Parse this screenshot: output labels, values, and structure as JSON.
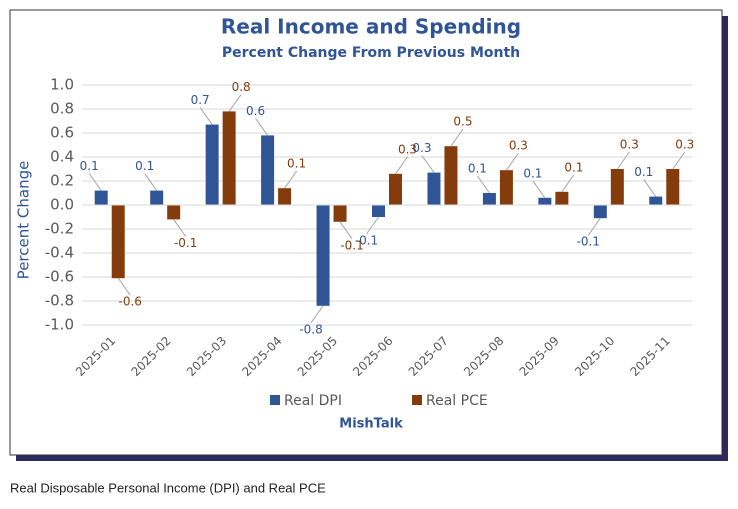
{
  "chart_data": {
    "type": "bar",
    "title": "Real Income and Spending",
    "subtitle": "Percent Change From Previous Month",
    "y_label": "Percent Change",
    "categories": [
      "2025-01",
      "2025-02",
      "2025-03",
      "2025-04",
      "2025-05",
      "2025-06",
      "2025-07",
      "2025-08",
      "2025-09",
      "2025-10",
      "2025-11"
    ],
    "series": [
      {
        "name": "Real DPI",
        "color": "#2f5597",
        "values": [
          0.12,
          0.12,
          0.67,
          0.58,
          -0.84,
          -0.1,
          0.27,
          0.1,
          0.06,
          -0.11,
          0.07
        ],
        "value_labels": [
          "0.1",
          "0.1",
          "0.7",
          "0.6",
          "-0.8",
          "-0.1",
          "0.3",
          "0.1",
          "0.1",
          "-0.1",
          "0.1"
        ]
      },
      {
        "name": "Real PCE",
        "color": "#843c0c",
        "values": [
          -0.61,
          -0.12,
          0.78,
          0.14,
          -0.14,
          0.26,
          0.49,
          0.29,
          0.11,
          0.3,
          0.3
        ],
        "value_labels": [
          "-0.6",
          "-0.1",
          "0.8",
          "0.1",
          "-0.1",
          "0.3",
          "0.5",
          "0.3",
          "0.1",
          "0.3",
          "0.3"
        ]
      }
    ],
    "ylim": [
      -1,
      1
    ],
    "yticks": [
      {
        "value": -1,
        "label": "-1.0"
      },
      -0.8,
      -0.6,
      -0.4,
      -0.2,
      {
        "value": 0,
        "label": "0.0"
      },
      0.2,
      0.4,
      0.6,
      0.8,
      {
        "value": 1,
        "label": "1.0"
      }
    ],
    "grid": true,
    "legend": "bottom",
    "source": "MishTalk"
  },
  "caption": "Real Disposable Personal Income (DPI) and Real PCE"
}
